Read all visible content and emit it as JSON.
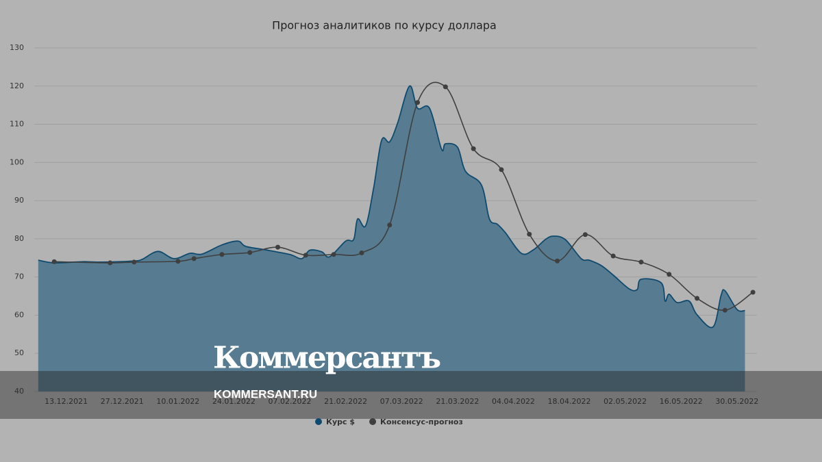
{
  "chart_data": {
    "type": "area_line",
    "title": "Прогноз аналитиков по курсу доллара",
    "xlim": [
      "05.12.2021",
      "04.06.2022"
    ],
    "xticks": [
      "13.12.2021",
      "27.12.2021",
      "10.01.2022",
      "24.01.2022",
      "07.02.2022",
      "21.02.2022",
      "07.03.2022",
      "21.03.2022",
      "04.04.2022",
      "18.04.2022",
      "02.05.2022",
      "16.05.2022",
      "30.05.2022"
    ],
    "ylim": [
      40,
      130
    ],
    "yticks": [
      40,
      50,
      60,
      70,
      80,
      90,
      100,
      110,
      120,
      130
    ],
    "grid": true,
    "series": [
      {
        "name": "Курс $",
        "kind": "area",
        "color": "#0f4a6e",
        "fill": "#577b91",
        "x": [
          "06.12.2021",
          "10.12.2021",
          "17.12.2021",
          "22.12.2021",
          "30.12.2021",
          "01.01.2022",
          "05.01.2022",
          "09.01.2022",
          "13.01.2022",
          "16.01.2022",
          "21.01.2022",
          "25.01.2022",
          "27.01.2022",
          "01.02.2022",
          "07.02.2022",
          "10.02.2022",
          "12.02.2022",
          "15.02.2022",
          "17.02.2022",
          "21.02.2022",
          "23.02.2022",
          "24.02.2022",
          "26.02.2022",
          "28.02.2022",
          "02.03.2022",
          "04.03.2022",
          "06.03.2022",
          "09.03.2022",
          "11.03.2022",
          "14.03.2022",
          "17.03.2022",
          "18.03.2022",
          "21.03.2022",
          "23.03.2022",
          "27.03.2022",
          "29.03.2022",
          "31.03.2022",
          "02.04.2022",
          "06.04.2022",
          "09.04.2022",
          "12.04.2022",
          "14.04.2022",
          "17.04.2022",
          "21.04.2022",
          "23.04.2022",
          "26.04.2022",
          "29.04.2022",
          "03.05.2022",
          "05.05.2022",
          "06.05.2022",
          "11.05.2022",
          "12.05.2022",
          "13.05.2022",
          "15.05.2022",
          "18.05.2022",
          "20.05.2022",
          "24.05.2022",
          "26.05.2022",
          "27.05.2022",
          "30.05.2022",
          "01.06.2022"
        ],
        "values": [
          74.4,
          73.7,
          74.0,
          73.9,
          74.2,
          74.6,
          76.7,
          74.8,
          76.2,
          76.0,
          78.4,
          79.4,
          78.0,
          77.1,
          75.9,
          74.8,
          77.0,
          76.6,
          75.3,
          79.4,
          79.8,
          85.2,
          83.4,
          93.3,
          105.8,
          105.4,
          110.3,
          120.0,
          114.2,
          114.2,
          103.5,
          104.9,
          104.0,
          97.7,
          94.1,
          85.2,
          83.8,
          81.6,
          76.2,
          77.1,
          79.8,
          80.7,
          79.8,
          74.8,
          74.4,
          73.0,
          70.5,
          66.9,
          66.7,
          69.4,
          68.5,
          63.7,
          65.5,
          63.3,
          63.7,
          60.1,
          56.9,
          65.1,
          66.4,
          61.5,
          61.2
        ]
      },
      {
        "name": "Консенсус-прогноз",
        "kind": "line",
        "color": "#3f3f3f",
        "x": [
          "10.12.2021",
          "24.12.2021",
          "30.12.2021",
          "10.01.2022",
          "14.01.2022",
          "21.01.2022",
          "28.01.2022",
          "04.02.2022",
          "11.02.2022",
          "18.02.2022",
          "25.02.2022",
          "04.03.2022",
          "11.03.2022",
          "18.03.2022",
          "25.03.2022",
          "01.04.2022",
          "08.04.2022",
          "15.04.2022",
          "22.04.2022",
          "29.04.2022",
          "06.05.2022",
          "13.05.2022",
          "20.05.2022",
          "27.05.2022",
          "03.06.2022"
        ],
        "values": [
          74.0,
          73.7,
          73.9,
          74.1,
          74.8,
          75.9,
          76.4,
          77.8,
          75.7,
          75.9,
          76.3,
          83.6,
          115.7,
          119.8,
          103.6,
          98.1,
          81.2,
          74.2,
          81.1,
          75.5,
          73.9,
          70.7,
          64.4,
          61.3,
          66.0
        ]
      }
    ]
  },
  "watermark": {
    "brand": "Коммерсантъ",
    "site": "KOMMERSANT.RU"
  }
}
